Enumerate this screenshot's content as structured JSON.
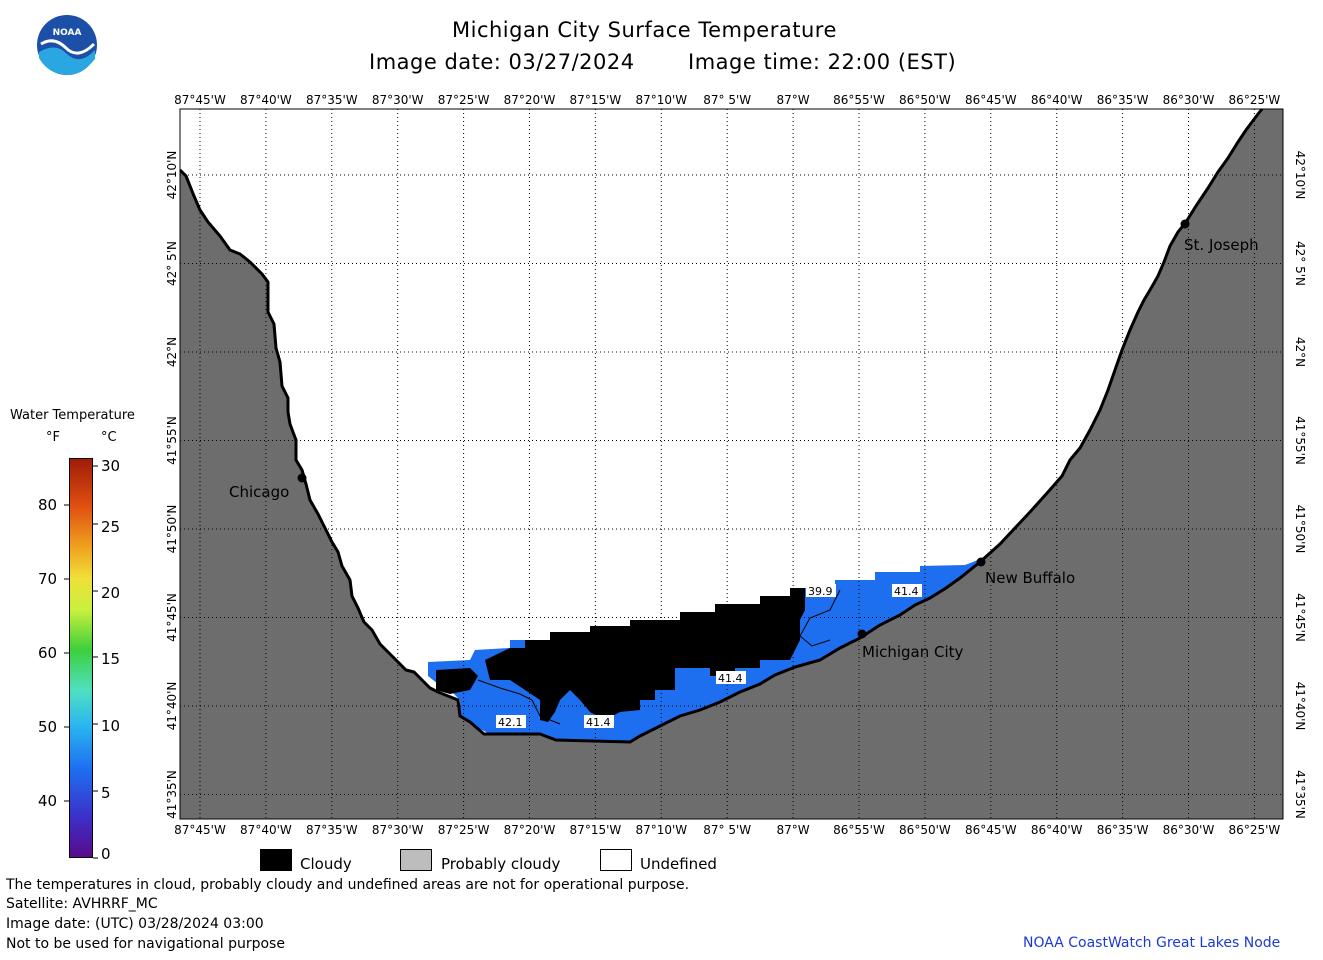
{
  "header": {
    "title": "Michigan City Surface Temperature",
    "image_date": "Image date: 03/27/2024",
    "image_time": "Image time: 22:00 (EST)",
    "logo_text": "NOAA"
  },
  "map": {
    "lon_labels": [
      "87°45'W",
      "87°40'W",
      "87°35'W",
      "87°30'W",
      "87°25'W",
      "87°20'W",
      "87°15'W",
      "87°10'W",
      "87° 5'W",
      "87°W",
      "86°55'W",
      "86°50'W",
      "86°45'W",
      "86°40'W",
      "86°35'W",
      "86°30'W",
      "86°25'W"
    ],
    "lat_labels": [
      "42°10'N",
      "42° 5'N",
      "42°N",
      "41°55'N",
      "41°50'N",
      "41°45'N",
      "41°40'N",
      "41°35'N"
    ],
    "cities": [
      {
        "name": "Chicago"
      },
      {
        "name": "St. Joseph"
      },
      {
        "name": "New Buffalo"
      },
      {
        "name": "Michigan City"
      }
    ],
    "temp_labels": [
      "39.9",
      "41.4",
      "41.4",
      "41.4",
      "42.1"
    ],
    "colors": {
      "land": "#6d6d6d",
      "water": "#1e6ef0",
      "cloud": "#000000",
      "grid": "#000000"
    }
  },
  "legend": {
    "title": "Water Temperature",
    "unit_f": "°F",
    "unit_c": "°C",
    "f_ticks": [
      "80",
      "70",
      "60",
      "50",
      "40"
    ],
    "c_ticks": [
      "30",
      "25",
      "20",
      "15",
      "10",
      "5",
      "0"
    ],
    "keys": [
      {
        "label": "Cloudy",
        "color": "#000000"
      },
      {
        "label": "Probably cloudy",
        "color": "#bdbdbd"
      },
      {
        "label": "Undefined",
        "color": "#ffffff"
      }
    ]
  },
  "footer": {
    "note": "The temperatures in cloud, probably cloudy and undefined areas are not for operational purpose.",
    "satellite": "Satellite: AVHRRF_MC",
    "utc_date": "Image date: (UTC) 03/28/2024  03:00",
    "nav_warning": "Not to be used for navigational purpose",
    "credit": "NOAA CoastWatch Great Lakes Node"
  }
}
